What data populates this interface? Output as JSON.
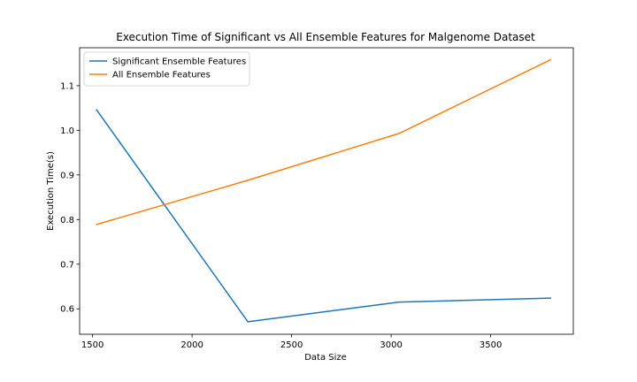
{
  "chart_data": {
    "type": "line",
    "title": "Execution Time of Significant vs All Ensemble Features for Malgenome Dataset",
    "xlabel": "Data Size",
    "ylabel": "Execution Time(s)",
    "xlim": [
      1435,
      3915
    ],
    "ylim": [
      0.543,
      1.185
    ],
    "xticks": [
      1500,
      2000,
      2500,
      3000,
      3500
    ],
    "yticks": [
      0.6,
      0.7,
      0.8,
      0.9,
      1.0,
      1.1
    ],
    "xtick_labels": [
      "1500",
      "2000",
      "2500",
      "3000",
      "3500"
    ],
    "ytick_labels": [
      "0.6",
      "0.7",
      "0.8",
      "0.9",
      "1.0",
      "1.1"
    ],
    "legend_position": "top-left",
    "series": [
      {
        "name": "Significant Ensemble Features",
        "color": "#1f77b4",
        "x": [
          1520,
          2280,
          3040,
          3800
        ],
        "y": [
          1.046,
          0.571,
          0.615,
          0.624
        ]
      },
      {
        "name": "All Ensemble Features",
        "color": "#ff7f0e",
        "x": [
          1520,
          2280,
          3040,
          3800
        ],
        "y": [
          0.789,
          0.888,
          0.993,
          1.158
        ]
      }
    ]
  }
}
